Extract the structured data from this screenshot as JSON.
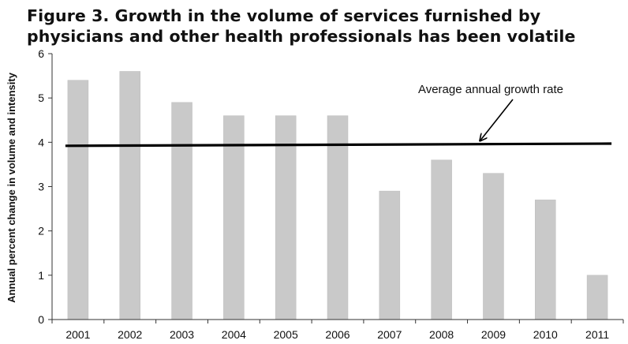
{
  "chart_data": {
    "type": "bar",
    "title_line1": "Figure 3. Growth in the volume of services furnished by",
    "title_line2": "physicians and other health professionals has been volatile",
    "xlabel": "",
    "ylabel": "Annual percent change in volume and intensity",
    "categories": [
      "2001",
      "2002",
      "2003",
      "2004",
      "2005",
      "2006",
      "2007",
      "2008",
      "2009",
      "2010",
      "2011"
    ],
    "values": [
      5.4,
      5.6,
      4.9,
      4.6,
      4.6,
      4.6,
      2.9,
      3.6,
      3.3,
      2.7,
      1.0
    ],
    "ylim": [
      0,
      6
    ],
    "yticks": [
      "0",
      "1",
      "2",
      "3",
      "4",
      "5",
      "6"
    ],
    "reference_line": {
      "label": "Average annual growth rate",
      "start_value": 3.92,
      "end_value": 3.97
    },
    "bar_color": "#c9c9c9",
    "line_color": "#000000",
    "grid": false,
    "legend": "none"
  }
}
